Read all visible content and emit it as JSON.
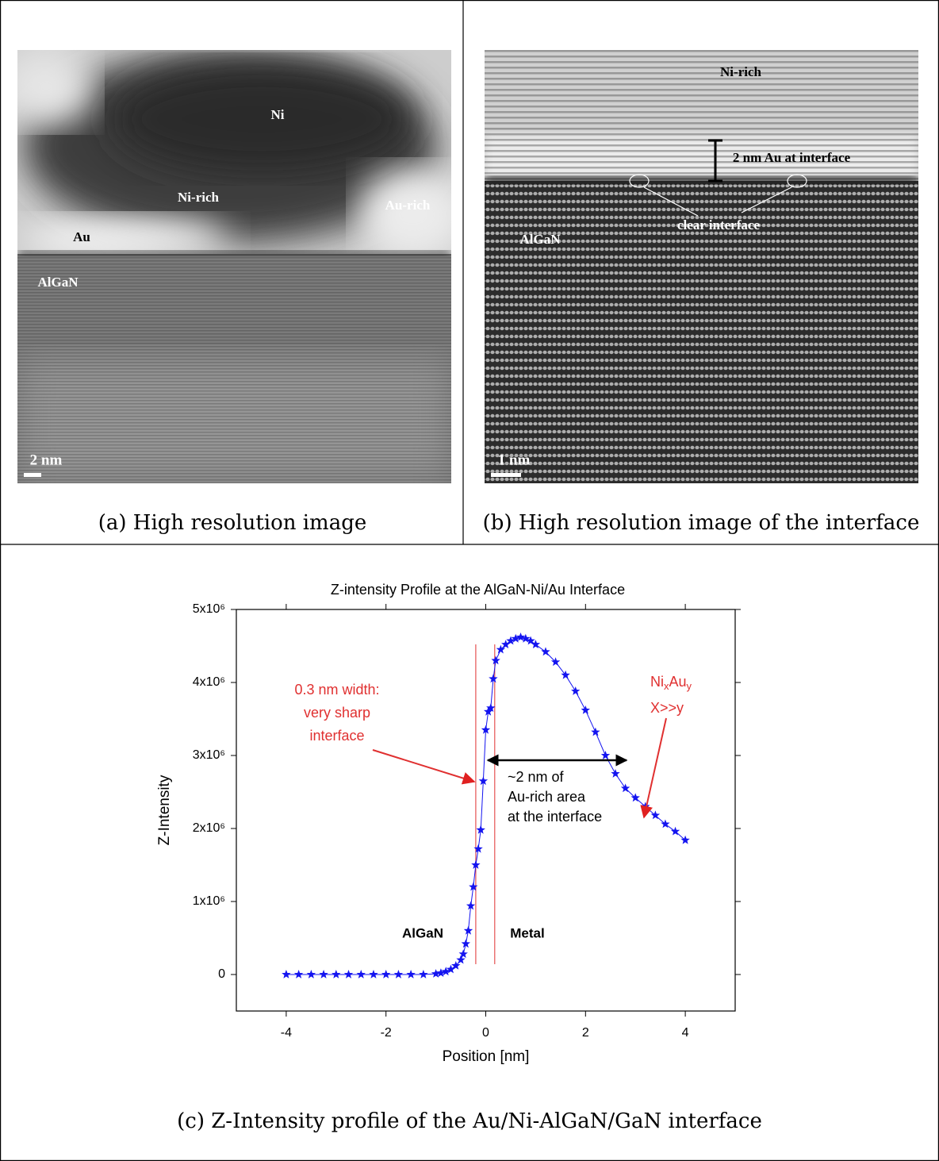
{
  "figure": {
    "panels": [
      {
        "labels": [
          "Ni",
          "Ni-rich",
          "Au-rich",
          "Au",
          "AlGaN"
        ],
        "scale_bar": "2 nm",
        "caption": "(a) High resolution image"
      },
      {
        "labels": [
          "Ni-rich",
          "2 nm Au at interface",
          "clear interface",
          "AlGaN"
        ],
        "scale_bar": "1 nm",
        "caption": "(b) High resolution image of the interface"
      }
    ],
    "caption": "(c) Z-Intensity profile of the Au/Ni-AlGaN/GaN interface"
  },
  "chart_data": {
    "type": "line",
    "title": "Z-intensity Profile at the AlGaN-Ni/Au Interface",
    "x_label": "Position [nm]",
    "y_label": "Z-Intensity",
    "xlim": [
      -5,
      5
    ],
    "xticks": [
      -4,
      -2,
      0,
      2,
      4
    ],
    "ylim": [
      -500000,
      5000000
    ],
    "yticks": [
      0,
      {
        "value": 1000000,
        "label": "1x10⁶"
      },
      {
        "value": 2000000,
        "label": "2x10⁶"
      },
      {
        "value": 3000000,
        "label": "3x10⁶"
      },
      {
        "value": 4000000,
        "label": "4x10⁶"
      },
      {
        "value": 5000000,
        "label": "5x10⁶"
      }
    ],
    "x": [
      -4,
      -3.75,
      -3.5,
      -3.25,
      -3,
      -2.75,
      -2.5,
      -2.25,
      -2,
      -1.75,
      -1.5,
      -1.25,
      -1,
      -0.9,
      -0.8,
      -0.7,
      -0.6,
      -0.5,
      -0.45,
      -0.4,
      -0.35,
      -0.3,
      -0.25,
      -0.2,
      -0.15,
      -0.1,
      -0.05,
      0,
      0.05,
      0.1,
      0.15,
      0.2,
      0.3,
      0.4,
      0.5,
      0.6,
      0.7,
      0.8,
      0.9,
      1,
      1.2,
      1.4,
      1.6,
      1.8,
      2,
      2.2,
      2.4,
      2.6,
      2.8,
      3,
      3.2,
      3.4,
      3.6,
      3.8,
      4
    ],
    "series": [
      {
        "color": "#1414f0",
        "marker": "star",
        "values": [
          0,
          0,
          0,
          0,
          0,
          0,
          0,
          0,
          0,
          0,
          0,
          0,
          10000,
          20000,
          40000,
          70000,
          120000,
          200000,
          280000,
          420000,
          600000,
          940000,
          1200000,
          1500000,
          1720000,
          1980000,
          2650000,
          3350000,
          3600000,
          3650000,
          4050000,
          4300000,
          4450000,
          4520000,
          4570000,
          4600000,
          4620000,
          4600000,
          4570000,
          4520000,
          4420000,
          4280000,
          4100000,
          3880000,
          3620000,
          3320000,
          3000000,
          2750000,
          2550000,
          2420000,
          2300000,
          2180000,
          2060000,
          1960000,
          1840000
        ]
      }
    ],
    "vlines": {
      "color": "#e03030",
      "x": [
        -0.2,
        0.18
      ]
    },
    "annotations": {
      "width_note": [
        "0.3 nm width:",
        "very sharp",
        "interface"
      ],
      "au_note": [
        "~2 nm of",
        "Au-rich area",
        "at the interface"
      ],
      "ni_au": [
        "Ni",
        "x",
        "Au",
        "y"
      ],
      "ratio": "X>>y",
      "region_left": "AlGaN",
      "region_right": "Metal"
    }
  }
}
